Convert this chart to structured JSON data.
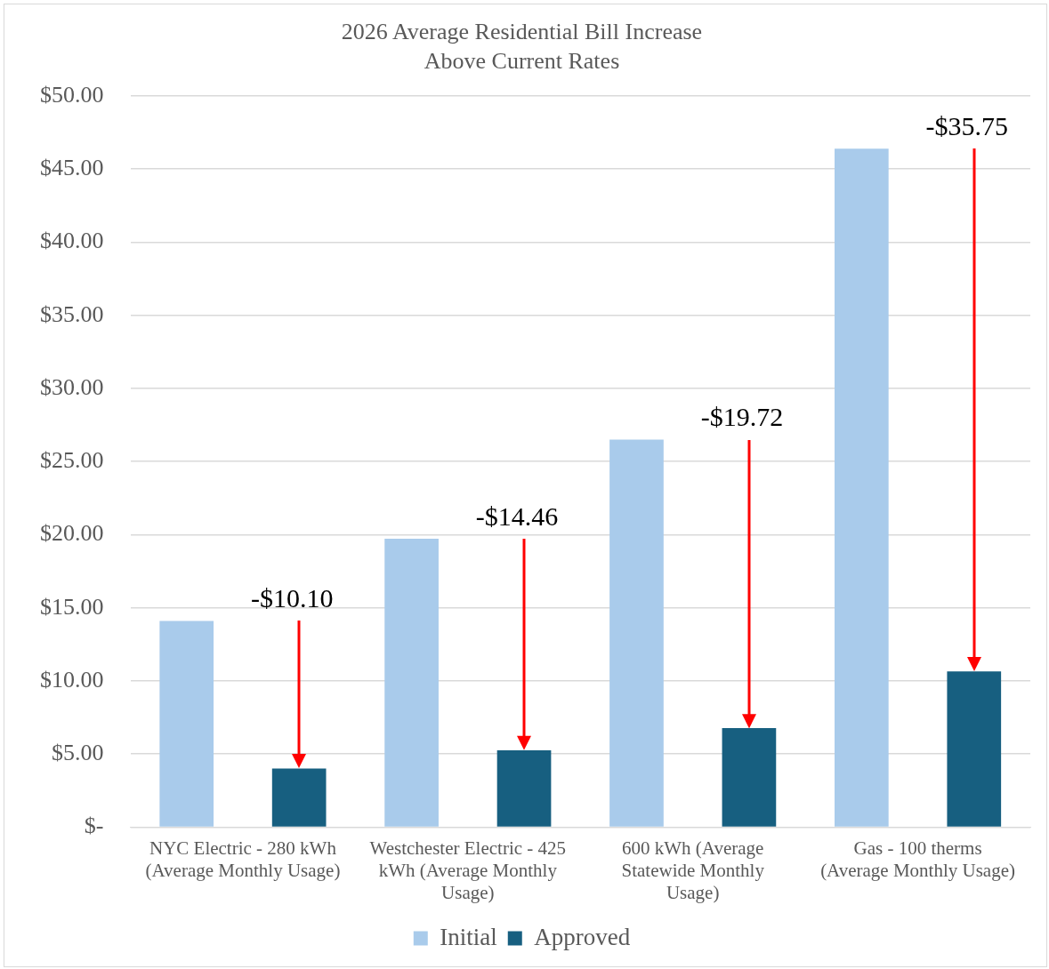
{
  "chart_data": {
    "type": "bar",
    "title": "2026 Average Residential Bill Increase Above Current Rates",
    "categories": [
      "NYC Electric - 280 kWh (Average Monthly Usage)",
      "Westchester Electric - 425 kWh (Average Monthly Usage)",
      "600 kWh (Average Statewide Monthly Usage)",
      "Gas - 100 therms (Average Monthly Usage)"
    ],
    "series": [
      {
        "name": "Initial",
        "color": "#a9cbeb",
        "values": [
          14.1,
          19.72,
          26.5,
          46.4
        ]
      },
      {
        "name": "Approved",
        "color": "#175f80",
        "values": [
          4.0,
          5.26,
          6.78,
          10.65
        ]
      }
    ],
    "ylim": [
      0,
      50
    ],
    "yticks": [
      {
        "value": 0,
        "label": "$-"
      },
      {
        "value": 5,
        "label": "$5.00"
      },
      {
        "value": 10,
        "label": "$10.00"
      },
      {
        "value": 15,
        "label": "$15.00"
      },
      {
        "value": 20,
        "label": "$20.00"
      },
      {
        "value": 25,
        "label": "$25.00"
      },
      {
        "value": 30,
        "label": "$30.00"
      },
      {
        "value": 35,
        "label": "$35.00"
      },
      {
        "value": 40,
        "label": "$40.00"
      },
      {
        "value": 45,
        "label": "$45.00"
      },
      {
        "value": 50,
        "label": "$50.00"
      }
    ],
    "grid": "y",
    "legend": "bottom",
    "annotations": [
      "-$10.10",
      "-$14.46",
      "-$19.72",
      "-$35.75"
    ]
  }
}
